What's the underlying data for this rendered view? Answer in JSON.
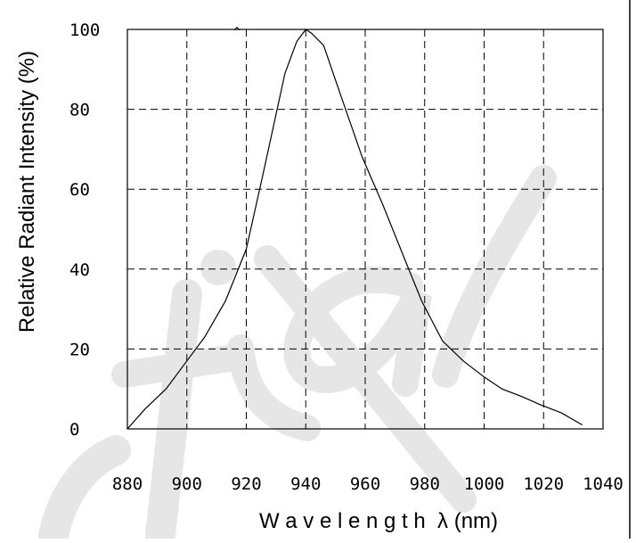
{
  "chart_data": {
    "type": "line",
    "title": "",
    "xlabel": "W a v e l e n g t h  λ (nm)",
    "ylabel": "Relative Radiant Intensity (%)",
    "xlim": [
      880,
      1040
    ],
    "ylim": [
      0,
      100
    ],
    "x_ticks": [
      "880",
      "900",
      "920",
      "940",
      "960",
      "980",
      "1000",
      "1020",
      "1040"
    ],
    "y_ticks": [
      "0",
      "20",
      "40",
      "60",
      "80",
      "100"
    ],
    "grid": true,
    "series": [
      {
        "x": [
          880,
          886,
          893,
          900,
          906,
          913,
          920,
          926,
          933,
          937,
          940,
          942,
          946,
          952,
          959,
          966,
          973,
          979,
          986,
          993,
          1000,
          1006,
          1013,
          1019,
          1026,
          1033
        ],
        "y": [
          0,
          5,
          10,
          17,
          23,
          32,
          45,
          65,
          89,
          97,
          100,
          99,
          96,
          83,
          68,
          56,
          43,
          32,
          22,
          17,
          13,
          10,
          8,
          6,
          4,
          1
        ]
      }
    ]
  },
  "colors": {
    "line": "#000000",
    "grid": "#000000",
    "watermark": "#e3e3e3"
  }
}
